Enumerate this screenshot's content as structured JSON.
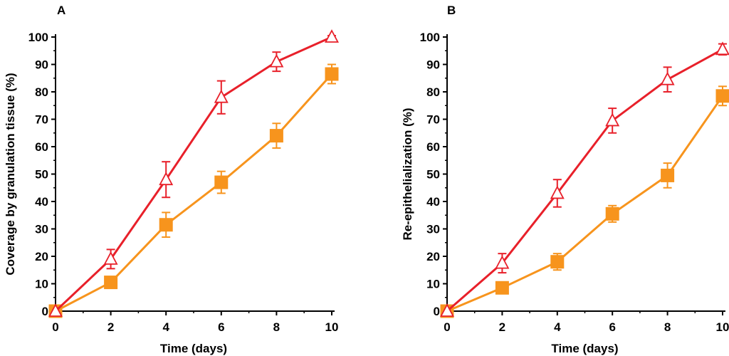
{
  "colors": {
    "red": "#e8202a",
    "orange": "#f7941d",
    "axis": "#000000"
  },
  "chart_data": [
    {
      "type": "line",
      "panel_label": "A",
      "xlabel": "Time (days)",
      "ylabel": "Coverage by granulation tissue (%)",
      "xlim": [
        0,
        10
      ],
      "ylim": [
        0,
        100
      ],
      "x_ticks": [
        "0",
        "2",
        "4",
        "6",
        "8",
        "10"
      ],
      "y_ticks": [
        "0",
        "10",
        "20",
        "30",
        "40",
        "50",
        "60",
        "70",
        "80",
        "90",
        "100"
      ],
      "x": [
        0,
        2,
        4,
        6,
        8,
        10
      ],
      "series": [
        {
          "name": "open triangle (red)",
          "marker": "triangle-open",
          "color": "#e8202a",
          "values": [
            0,
            19,
            48,
            78,
            91,
            100
          ],
          "errors": [
            0,
            3.5,
            6.5,
            6,
            3.5,
            0.5
          ]
        },
        {
          "name": "filled square (orange)",
          "marker": "square-filled",
          "color": "#f7941d",
          "values": [
            0,
            10.5,
            31.5,
            47,
            64,
            86.5
          ],
          "errors": [
            0,
            2,
            4.5,
            4,
            4.5,
            3.5
          ]
        }
      ]
    },
    {
      "type": "line",
      "panel_label": "B",
      "xlabel": "Time (days)",
      "ylabel": "Re-epithelialization (%)",
      "xlim": [
        0,
        10
      ],
      "ylim": [
        0,
        100
      ],
      "x_ticks": [
        "0",
        "2",
        "4",
        "6",
        "8",
        "10"
      ],
      "y_ticks": [
        "0",
        "10",
        "20",
        "30",
        "40",
        "50",
        "60",
        "70",
        "80",
        "90",
        "100"
      ],
      "x": [
        0,
        2,
        4,
        6,
        8,
        10
      ],
      "series": [
        {
          "name": "open triangle (red)",
          "marker": "triangle-open",
          "color": "#e8202a",
          "values": [
            0,
            17.5,
            43,
            69.5,
            84.5,
            95.5
          ],
          "errors": [
            0,
            3.5,
            5,
            4.5,
            4.5,
            2
          ]
        },
        {
          "name": "filled square (orange)",
          "marker": "square-filled",
          "color": "#f7941d",
          "values": [
            0,
            8.5,
            18,
            35.5,
            49.5,
            78.5
          ],
          "errors": [
            0,
            0.5,
            3,
            3,
            4.5,
            3.5
          ]
        }
      ]
    }
  ]
}
